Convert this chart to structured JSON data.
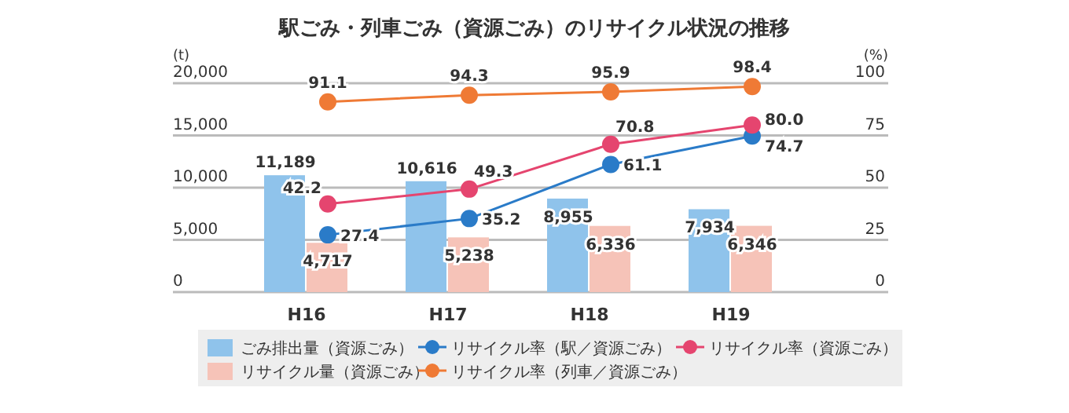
{
  "chart_data": {
    "type": "bar",
    "title": "駅ごみ・列車ごみ（資源ごみ）のリサイクル状況の推移",
    "ylabel": "(t)",
    "y2label": "(%)",
    "categories": [
      "H16",
      "H17",
      "H18",
      "H19"
    ],
    "series": [
      {
        "name": "ごみ排出量（資源ごみ）",
        "color": "#8fc3eb",
        "values": [
          11189,
          10616,
          8955,
          7934
        ],
        "value_labels": [
          "11,189",
          "10,616",
          "8,955",
          "7,934"
        ]
      },
      {
        "name": "リサイクル率（駅／資源ごみ）",
        "type": "line",
        "axis": "y2",
        "color": "#2a7bc8",
        "values": [
          27.4,
          35.2,
          61.1,
          74.7
        ],
        "value_labels": [
          "27.4",
          "35.2",
          "61.1",
          "74.7"
        ]
      },
      {
        "name": "リサイクル率（資源ごみ）",
        "type": "line",
        "axis": "y2",
        "color": "#e5456f",
        "values": [
          42.2,
          49.3,
          70.8,
          80.0
        ],
        "value_labels": [
          "42.2",
          "49.3",
          "70.8",
          "80.0"
        ]
      },
      {
        "name": "リサイクル量（資源ごみ）",
        "color": "#f6c3b8",
        "values": [
          4717,
          5238,
          6336,
          6346
        ],
        "value_labels": [
          "4,717",
          "5,238",
          "6,336",
          "6,346"
        ]
      },
      {
        "name": "リサイクル率（列車／資源ごみ）",
        "type": "line",
        "axis": "y2",
        "color": "#ef7a35",
        "values": [
          91.1,
          94.3,
          95.9,
          98.4
        ],
        "value_labels": [
          "91.1",
          "94.3",
          "95.9",
          "98.4"
        ]
      }
    ],
    "ylim": [
      0,
      20000
    ],
    "yticks": [
      0,
      {
        "value": 5000,
        "label": "5,000"
      },
      {
        "value": 10000,
        "label": "10,000"
      },
      {
        "value": 15000,
        "label": "15,000"
      },
      {
        "value": 20000,
        "label": "20,000"
      }
    ],
    "y2lim": [
      0,
      100
    ],
    "y2ticks": [
      0,
      25,
      50,
      75,
      100
    ],
    "grid": "y",
    "legend": "bottom",
    "marker": "circle",
    "line_style": "solid"
  }
}
